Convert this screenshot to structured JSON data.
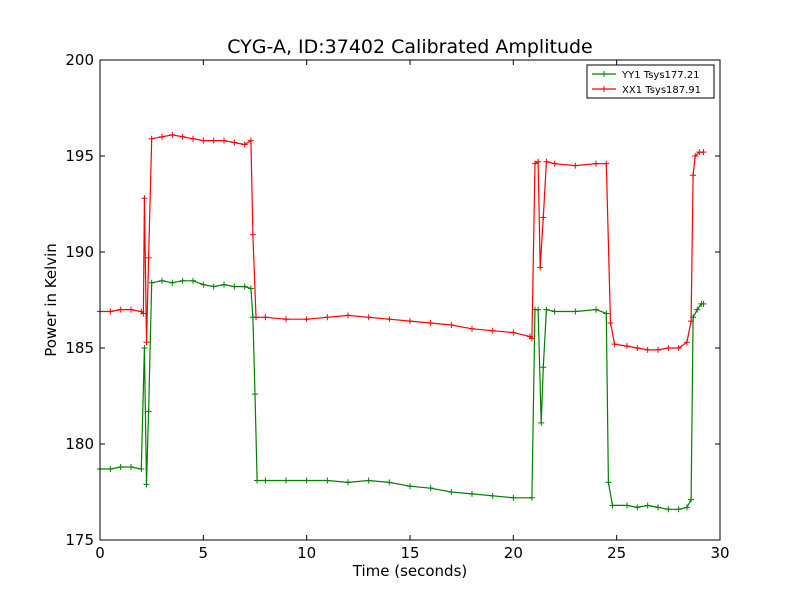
{
  "chart_data": {
    "type": "line",
    "title": "CYG-A, ID:37402 Calibrated Amplitude",
    "xlabel": "Time (seconds)",
    "ylabel": "Power in Kelvin",
    "xlim": [
      0,
      30
    ],
    "ylim": [
      175,
      200
    ],
    "xticks": [
      "0",
      "5",
      "10",
      "15",
      "20",
      "25",
      "30"
    ],
    "yticks": [
      "175",
      "180",
      "185",
      "190",
      "195",
      "200"
    ],
    "grid": false,
    "legend_position": "top-right",
    "marker": "plus",
    "series": [
      {
        "name": "YY1 Tsys177.21",
        "color": "#008000",
        "points": [
          [
            0.0,
            178.7
          ],
          [
            0.5,
            178.7
          ],
          [
            1.0,
            178.8
          ],
          [
            1.5,
            178.8
          ],
          [
            2.0,
            178.7
          ],
          [
            2.15,
            185.0
          ],
          [
            2.25,
            177.9
          ],
          [
            2.35,
            181.7
          ],
          [
            2.5,
            188.4
          ],
          [
            3.0,
            188.5
          ],
          [
            3.5,
            188.4
          ],
          [
            4.0,
            188.5
          ],
          [
            4.5,
            188.5
          ],
          [
            5.0,
            188.3
          ],
          [
            5.5,
            188.2
          ],
          [
            6.0,
            188.3
          ],
          [
            6.5,
            188.2
          ],
          [
            7.0,
            188.2
          ],
          [
            7.3,
            188.1
          ],
          [
            7.4,
            186.6
          ],
          [
            7.5,
            182.6
          ],
          [
            7.6,
            178.1
          ],
          [
            8.0,
            178.1
          ],
          [
            9.0,
            178.1
          ],
          [
            10.0,
            178.1
          ],
          [
            11.0,
            178.1
          ],
          [
            12.0,
            178.0
          ],
          [
            13.0,
            178.1
          ],
          [
            14.0,
            178.0
          ],
          [
            15.0,
            177.8
          ],
          [
            16.0,
            177.7
          ],
          [
            17.0,
            177.5
          ],
          [
            18.0,
            177.4
          ],
          [
            19.0,
            177.3
          ],
          [
            20.0,
            177.2
          ],
          [
            20.9,
            177.2
          ],
          [
            21.05,
            187.0
          ],
          [
            21.2,
            187.0
          ],
          [
            21.35,
            181.1
          ],
          [
            21.45,
            184.0
          ],
          [
            21.6,
            187.0
          ],
          [
            22.0,
            186.9
          ],
          [
            23.0,
            186.9
          ],
          [
            24.0,
            187.0
          ],
          [
            24.5,
            186.8
          ],
          [
            24.6,
            178.0
          ],
          [
            24.8,
            176.8
          ],
          [
            25.5,
            176.8
          ],
          [
            26.0,
            176.7
          ],
          [
            26.5,
            176.8
          ],
          [
            27.0,
            176.7
          ],
          [
            27.5,
            176.6
          ],
          [
            28.0,
            176.6
          ],
          [
            28.4,
            176.7
          ],
          [
            28.6,
            177.1
          ],
          [
            28.7,
            186.6
          ],
          [
            28.9,
            187.0
          ],
          [
            29.1,
            187.3
          ],
          [
            29.2,
            187.3
          ]
        ]
      },
      {
        "name": "XX1 Tsys187.91",
        "color": "#ff0000",
        "points": [
          [
            0.0,
            186.9
          ],
          [
            0.5,
            186.9
          ],
          [
            1.0,
            187.0
          ],
          [
            1.5,
            187.0
          ],
          [
            2.0,
            186.9
          ],
          [
            2.1,
            186.8
          ],
          [
            2.15,
            192.8
          ],
          [
            2.25,
            185.3
          ],
          [
            2.35,
            189.7
          ],
          [
            2.5,
            195.9
          ],
          [
            3.0,
            196.0
          ],
          [
            3.5,
            196.1
          ],
          [
            4.0,
            196.0
          ],
          [
            4.5,
            195.9
          ],
          [
            5.0,
            195.8
          ],
          [
            5.5,
            195.8
          ],
          [
            6.0,
            195.8
          ],
          [
            6.5,
            195.7
          ],
          [
            7.0,
            195.6
          ],
          [
            7.3,
            195.8
          ],
          [
            7.4,
            190.9
          ],
          [
            7.55,
            186.6
          ],
          [
            8.0,
            186.6
          ],
          [
            9.0,
            186.5
          ],
          [
            10.0,
            186.5
          ],
          [
            11.0,
            186.6
          ],
          [
            12.0,
            186.7
          ],
          [
            13.0,
            186.6
          ],
          [
            14.0,
            186.5
          ],
          [
            15.0,
            186.4
          ],
          [
            16.0,
            186.3
          ],
          [
            17.0,
            186.2
          ],
          [
            18.0,
            186.0
          ],
          [
            19.0,
            185.9
          ],
          [
            20.0,
            185.8
          ],
          [
            20.8,
            185.6
          ],
          [
            20.9,
            185.5
          ],
          [
            21.05,
            194.6
          ],
          [
            21.2,
            194.7
          ],
          [
            21.3,
            189.2
          ],
          [
            21.45,
            191.8
          ],
          [
            21.6,
            194.7
          ],
          [
            22.0,
            194.6
          ],
          [
            23.0,
            194.5
          ],
          [
            24.0,
            194.6
          ],
          [
            24.5,
            194.6
          ],
          [
            24.7,
            186.3
          ],
          [
            24.9,
            185.2
          ],
          [
            25.5,
            185.1
          ],
          [
            26.0,
            185.0
          ],
          [
            26.5,
            184.9
          ],
          [
            27.0,
            184.9
          ],
          [
            27.5,
            185.0
          ],
          [
            28.0,
            185.0
          ],
          [
            28.4,
            185.3
          ],
          [
            28.6,
            186.4
          ],
          [
            28.7,
            194.0
          ],
          [
            28.8,
            195.0
          ],
          [
            29.0,
            195.2
          ],
          [
            29.2,
            195.2
          ]
        ]
      }
    ]
  }
}
